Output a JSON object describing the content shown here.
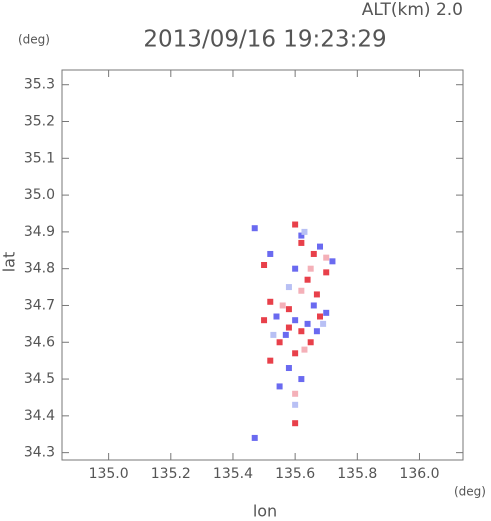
{
  "chart_data": {
    "type": "scatter",
    "title": "2013/09/16 19:23:29",
    "subtitle": "ALT(km) 2.0",
    "y_unit": "(deg)",
    "x_unit": "(deg)",
    "ylabel": "lat",
    "xlabel": "lon",
    "xlim": [
      134.85,
      136.14
    ],
    "ylim": [
      34.28,
      35.34
    ],
    "xticks": [
      {
        "value": 135,
        "label": "135.0"
      },
      135.2,
      135.4,
      135.6,
      135.8,
      {
        "value": 136,
        "label": "136.0"
      }
    ],
    "yticks": [
      34.3,
      34.4,
      34.5,
      34.6,
      34.7,
      34.8,
      34.9,
      {
        "value": 35,
        "label": "35.0"
      },
      35.1,
      35.2,
      35.3
    ],
    "series": [
      {
        "color": "#e8404a",
        "x": [
          135.6,
          135.62,
          135.66,
          135.7,
          135.64,
          135.52,
          135.58,
          135.5,
          135.62,
          135.55,
          135.6,
          135.65,
          135.52,
          135.68,
          135.58,
          135.6,
          135.5,
          135.67
        ],
        "y": [
          34.92,
          34.87,
          34.84,
          34.79,
          34.77,
          34.71,
          34.69,
          34.66,
          34.63,
          34.6,
          34.57,
          34.6,
          34.55,
          34.67,
          34.64,
          34.38,
          34.81,
          34.73
        ]
      },
      {
        "color": "#6a6af0",
        "x": [
          135.47,
          135.62,
          135.68,
          135.72,
          135.54,
          135.66,
          135.7,
          135.6,
          135.64,
          135.57,
          135.67,
          135.58,
          135.62,
          135.55,
          135.47,
          135.52,
          135.6
        ],
        "y": [
          34.91,
          34.89,
          34.86,
          34.82,
          34.67,
          34.7,
          34.68,
          34.66,
          34.65,
          34.62,
          34.63,
          34.53,
          34.5,
          34.48,
          34.34,
          34.84,
          34.8
        ]
      },
      {
        "color": "#f4b0b8",
        "x": [
          135.65,
          135.7,
          135.56,
          135.62,
          135.63,
          135.6
        ],
        "y": [
          34.8,
          34.83,
          34.7,
          34.74,
          34.58,
          34.46
        ]
      },
      {
        "color": "#b8c0f4",
        "x": [
          135.63,
          135.53,
          135.69,
          135.58,
          135.6
        ],
        "y": [
          34.9,
          34.62,
          34.65,
          34.75,
          34.43
        ]
      }
    ]
  }
}
